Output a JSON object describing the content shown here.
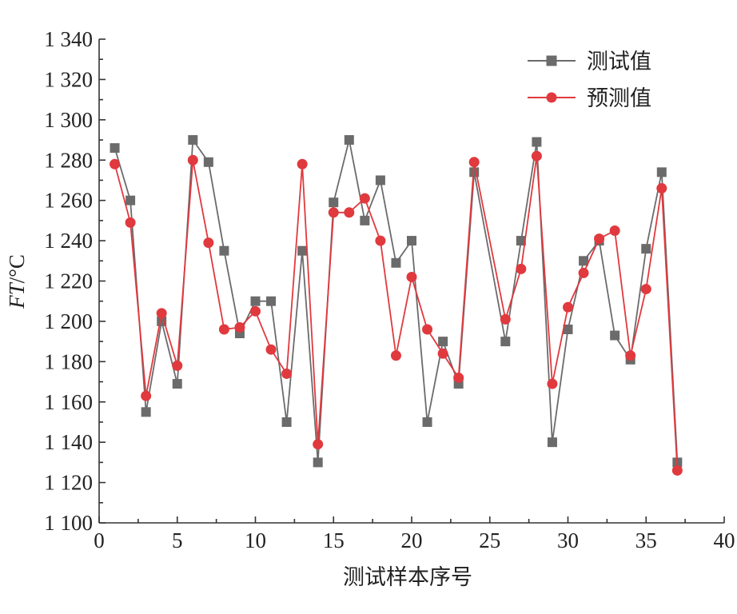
{
  "chart_data": {
    "type": "line",
    "xlabel": "测试样本序号",
    "ylabel_italic": "FT",
    "ylabel_unit": "/°C",
    "xlim": [
      0,
      40
    ],
    "ylim": [
      1100,
      1340
    ],
    "xticks": [
      0,
      5,
      10,
      15,
      20,
      25,
      30,
      35,
      40
    ],
    "xtick_labels": [
      "0",
      "5",
      "10",
      "15",
      "20",
      "25",
      "30",
      "35",
      "40"
    ],
    "yticks": [
      1100,
      1120,
      1140,
      1160,
      1180,
      1200,
      1220,
      1240,
      1260,
      1280,
      1300,
      1320,
      1340
    ],
    "ytick_labels": [
      "1 100",
      "1 120",
      "1 140",
      "1 160",
      "1 180",
      "1 200",
      "1 220",
      "1 240",
      "1 260",
      "1 280",
      "1 300",
      "1 320",
      "1 340"
    ],
    "grid": false,
    "legend_position": "top-right",
    "x": [
      1,
      2,
      3,
      4,
      5,
      6,
      7,
      8,
      9,
      10,
      11,
      12,
      13,
      14,
      15,
      16,
      17,
      18,
      19,
      20,
      21,
      22,
      23,
      24,
      25,
      26,
      27,
      28,
      29,
      30,
      31,
      32,
      33,
      34,
      35,
      36,
      37
    ],
    "series": [
      {
        "name": "测试值",
        "color": "#6b6b6b",
        "marker": "square",
        "values": [
          1286,
          1260,
          1155,
          1200,
          1169,
          1290,
          1279,
          1235,
          1194,
          1210,
          1210,
          1150,
          1235,
          1130,
          1259,
          1290,
          1250,
          1270,
          1229,
          1240,
          1150,
          1190,
          1169,
          1274,
          null,
          1190,
          1240,
          1289,
          1140,
          1196,
          1230,
          1240,
          1193,
          1181,
          1236,
          1274,
          1130
        ]
      },
      {
        "name": "预测值",
        "color": "#e0393e",
        "marker": "circle",
        "values": [
          1278,
          1249,
          1163,
          1204,
          1178,
          1280,
          1239,
          1196,
          1197,
          1205,
          1186,
          1174,
          1278,
          1139,
          1254,
          1254,
          1261,
          1240,
          1183,
          1222,
          1196,
          1184,
          1172,
          1279,
          null,
          1201,
          1226,
          1282,
          1169,
          1207,
          1224,
          1241,
          1245,
          1183,
          1216,
          1266,
          1126
        ]
      }
    ]
  }
}
